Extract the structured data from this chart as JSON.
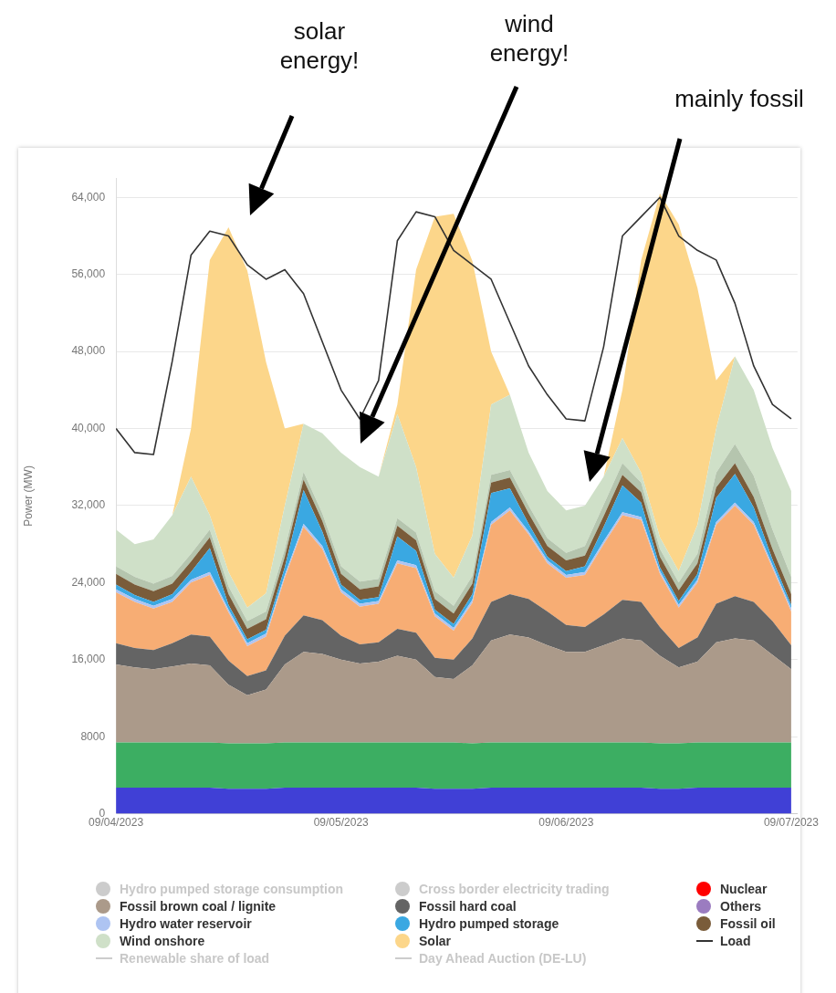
{
  "chart_data": {
    "type": "area",
    "stacked": true,
    "ylabel": "Power (MW)",
    "legend": "bottom",
    "grid": "y",
    "annotations": [
      "solar energy!",
      "wind energy!",
      "mainly fossil"
    ],
    "x": [
      "2023-09-04T00:00",
      "2023-09-04T02:00",
      "2023-09-04T04:00",
      "2023-09-04T06:00",
      "2023-09-04T08:00",
      "2023-09-04T10:00",
      "2023-09-04T12:00",
      "2023-09-04T14:00",
      "2023-09-04T16:00",
      "2023-09-04T18:00",
      "2023-09-04T20:00",
      "2023-09-04T22:00",
      "2023-09-05T00:00",
      "2023-09-05T02:00",
      "2023-09-05T04:00",
      "2023-09-05T06:00",
      "2023-09-05T08:00",
      "2023-09-05T10:00",
      "2023-09-05T12:00",
      "2023-09-05T14:00",
      "2023-09-05T16:00",
      "2023-09-05T18:00",
      "2023-09-05T20:00",
      "2023-09-05T22:00",
      "2023-09-06T00:00",
      "2023-09-06T02:00",
      "2023-09-06T04:00",
      "2023-09-06T06:00",
      "2023-09-06T08:00",
      "2023-09-06T10:00",
      "2023-09-06T12:00",
      "2023-09-06T14:00",
      "2023-09-06T16:00",
      "2023-09-06T18:00",
      "2023-09-06T20:00",
      "2023-09-06T22:00",
      "2023-09-07T00:00"
    ],
    "xlim": [
      "2023-09-04T00:00",
      "2023-09-07T00:40"
    ],
    "xticks": [
      {
        "value": "2023-09-04T00:00",
        "label": "09/04/2023"
      },
      {
        "value": "2023-09-05T00:00",
        "label": "09/05/2023"
      },
      {
        "value": "2023-09-06T00:00",
        "label": "09/06/2023"
      },
      {
        "value": "2023-09-07T00:00",
        "label": "09/07/2023"
      }
    ],
    "ylim": [
      0,
      66000
    ],
    "yticks": [
      0,
      8000,
      {
        "value": 16000,
        "label": "16,000"
      },
      {
        "value": 24000,
        "label": "24,000"
      },
      {
        "value": 32000,
        "label": "32,000"
      },
      {
        "value": 40000,
        "label": "40,000"
      },
      {
        "value": 48000,
        "label": "48,000"
      },
      {
        "value": 56000,
        "label": "56,000"
      },
      {
        "value": 64000,
        "label": "64,000"
      }
    ],
    "series": [
      {
        "name": "Hydro pumped storage consumption",
        "color": "#cccccc",
        "values": [
          null,
          null,
          null,
          null,
          null,
          null,
          null,
          null,
          null,
          null,
          null,
          null,
          null,
          null,
          null,
          null,
          null,
          null,
          null,
          null,
          null,
          null,
          null,
          null,
          null,
          null,
          null,
          null,
          null,
          null,
          null,
          null,
          null,
          null,
          null,
          null,
          null
        ]
      },
      {
        "name": "Cross border electricity trading",
        "color": "#cccccc",
        "values": [
          null,
          null,
          null,
          null,
          null,
          null,
          null,
          null,
          null,
          null,
          null,
          null,
          null,
          null,
          null,
          null,
          null,
          null,
          null,
          null,
          null,
          null,
          null,
          null,
          null,
          null,
          null,
          null,
          null,
          null,
          null,
          null,
          null,
          null,
          null,
          null,
          null
        ]
      },
      {
        "name": "Nuclear",
        "color": "#ff0000",
        "values": [
          null,
          null,
          null,
          null,
          null,
          null,
          null,
          null,
          null,
          null,
          null,
          null,
          null,
          null,
          null,
          null,
          null,
          null,
          null,
          null,
          null,
          null,
          null,
          null,
          null,
          null,
          null,
          null,
          null,
          null,
          null,
          null,
          null,
          null,
          null,
          null,
          null
        ]
      },
      {
        "color": "#4040d6",
        "values": [
          2700,
          2700,
          2700,
          2700,
          2700,
          2700,
          2600,
          2600,
          2600,
          2700,
          2700,
          2700,
          2700,
          2700,
          2700,
          2700,
          2700,
          2600,
          2600,
          2600,
          2700,
          2700,
          2700,
          2700,
          2700,
          2700,
          2700,
          2700,
          2700,
          2600,
          2600,
          2700,
          2700,
          2700,
          2700,
          2700,
          2700
        ]
      },
      {
        "color": "#3cae62",
        "values": [
          4700,
          4700,
          4700,
          4700,
          4700,
          4700,
          4700,
          4700,
          4700,
          4700,
          4700,
          4700,
          4700,
          4700,
          4700,
          4700,
          4700,
          4800,
          4800,
          4700,
          4700,
          4700,
          4700,
          4700,
          4700,
          4700,
          4700,
          4700,
          4700,
          4700,
          4700,
          4700,
          4700,
          4700,
          4700,
          4700,
          4700
        ]
      },
      {
        "name": "Fossil brown coal / lignite",
        "color": "#ab9a8a",
        "values": [
          8100,
          7800,
          7600,
          7900,
          8200,
          8000,
          6100,
          5000,
          5600,
          8100,
          9400,
          9200,
          8600,
          8200,
          8400,
          9000,
          8600,
          6800,
          6600,
          8100,
          10600,
          11200,
          10900,
          10100,
          9400,
          9400,
          10100,
          10800,
          10600,
          9100,
          7900,
          8400,
          10400,
          10800,
          10600,
          9100,
          7600
        ]
      },
      {
        "name": "Fossil hard coal",
        "color": "#646464",
        "values": [
          2200,
          2000,
          2000,
          2400,
          3000,
          3000,
          2500,
          2000,
          2000,
          3000,
          3800,
          3500,
          2500,
          2000,
          2000,
          2800,
          2800,
          2000,
          2000,
          2800,
          4000,
          4200,
          4000,
          3500,
          2800,
          2600,
          3200,
          4000,
          4000,
          3000,
          2000,
          2500,
          4000,
          4400,
          4000,
          3500,
          2500
        ]
      },
      {
        "color": "#f7ad74",
        "values": [
          5300,
          4800,
          4300,
          4300,
          5400,
          6400,
          5000,
          3100,
          3500,
          6000,
          9200,
          7400,
          4500,
          3900,
          4000,
          6800,
          6700,
          4300,
          3000,
          3700,
          8000,
          8700,
          6700,
          5000,
          4900,
          5400,
          7300,
          8800,
          8500,
          5500,
          4200,
          5700,
          8200,
          9400,
          8000,
          5500,
          3500
        ]
      },
      {
        "name": "Others",
        "color": "#9b7cc0",
        "values": [
          null,
          null,
          null,
          null,
          null,
          null,
          null,
          null,
          null,
          null,
          null,
          null,
          null,
          null,
          null,
          null,
          null,
          null,
          null,
          null,
          null,
          null,
          null,
          null,
          null,
          null,
          null,
          null,
          null,
          null,
          null,
          null,
          null,
          null,
          null,
          null,
          null
        ]
      },
      {
        "name": "Hydro water reservoir",
        "color": "#aec4f2",
        "values": [
          300,
          300,
          300,
          300,
          300,
          300,
          300,
          300,
          300,
          300,
          300,
          300,
          300,
          300,
          300,
          300,
          300,
          300,
          300,
          300,
          300,
          300,
          300,
          300,
          300,
          300,
          300,
          300,
          300,
          300,
          300,
          300,
          300,
          300,
          300,
          300,
          300
        ]
      },
      {
        "name": "Hydro pumped storage",
        "color": "#3aa8e2",
        "values": [
          500,
          400,
          400,
          500,
          800,
          2500,
          500,
          400,
          400,
          800,
          3500,
          1500,
          500,
          400,
          400,
          2500,
          1500,
          400,
          400,
          600,
          3000,
          2000,
          800,
          400,
          400,
          600,
          1500,
          2800,
          1500,
          400,
          400,
          600,
          2500,
          3000,
          1500,
          600,
          400
        ]
      },
      {
        "name": "Fossil oil",
        "color": "#7a5c3a",
        "values": [
          1100,
          1100,
          1100,
          1100,
          1100,
          1100,
          1100,
          1100,
          1100,
          1100,
          1100,
          1100,
          1100,
          1100,
          1100,
          1100,
          1100,
          1100,
          1100,
          1100,
          1100,
          1100,
          1100,
          1100,
          1100,
          1100,
          1100,
          1100,
          1100,
          1100,
          1100,
          1100,
          1100,
          1100,
          1100,
          1100,
          1100
        ]
      },
      {
        "color": "#b5c5ae",
        "values": [
          800,
          800,
          800,
          800,
          800,
          800,
          800,
          800,
          800,
          800,
          800,
          800,
          800,
          800,
          800,
          800,
          800,
          800,
          800,
          800,
          800,
          800,
          800,
          800,
          800,
          1000,
          1200,
          1200,
          1000,
          800,
          800,
          1000,
          1500,
          2000,
          2200,
          2000,
          1800
        ]
      },
      {
        "name": "Wind onshore",
        "color": "#cfe0c8",
        "values": [
          3800,
          3400,
          4600,
          6300,
          8000,
          1500,
          1500,
          1400,
          1900,
          4500,
          5000,
          8300,
          11800,
          11900,
          10600,
          10800,
          6800,
          3900,
          2900,
          4200,
          7300,
          7800,
          5500,
          4900,
          4400,
          4200,
          2900,
          2600,
          1000,
          1200,
          1200,
          3000,
          4600,
          9100,
          8900,
          8500,
          8900
        ]
      },
      {
        "name": "Solar",
        "color": "#fcd68a",
        "values": [
          0,
          0,
          0,
          0,
          5000,
          26500,
          35800,
          35000,
          24000,
          8000,
          0,
          0,
          0,
          0,
          0,
          1000,
          20500,
          35000,
          37800,
          28500,
          5500,
          0,
          0,
          0,
          0,
          0,
          0,
          5000,
          22100,
          35700,
          36000,
          24600,
          5000,
          0,
          0,
          0,
          0
        ]
      },
      {
        "name": "Load",
        "type": "line",
        "color": "#333333",
        "values": [
          40000,
          37500,
          37300,
          47000,
          58000,
          60500,
          60000,
          57000,
          55500,
          56500,
          54000,
          49000,
          44000,
          41000,
          45000,
          59500,
          62500,
          62000,
          58500,
          57000,
          55500,
          51000,
          46500,
          43500,
          41000,
          40800,
          48500,
          60000,
          62000,
          64000,
          60000,
          58500,
          57500,
          53000,
          46500,
          42500,
          41000
        ]
      },
      {
        "name": "Renewable share of load",
        "type": "line",
        "color": "#cccccc",
        "values": [
          null,
          null,
          null,
          null,
          null,
          null,
          null,
          null,
          null,
          null,
          null,
          null,
          null,
          null,
          null,
          null,
          null,
          null,
          null,
          null,
          null,
          null,
          null,
          null,
          null,
          null,
          null,
          null,
          null,
          null,
          null,
          null,
          null,
          null,
          null,
          null,
          null
        ]
      },
      {
        "name": "Day Ahead Auction (DE-LU)",
        "type": "line",
        "color": "#cccccc",
        "values": [
          null,
          null,
          null,
          null,
          null,
          null,
          null,
          null,
          null,
          null,
          null,
          null,
          null,
          null,
          null,
          null,
          null,
          null,
          null,
          null,
          null,
          null,
          null,
          null,
          null,
          null,
          null,
          null,
          null,
          null,
          null,
          null,
          null,
          null,
          null,
          null,
          null
        ]
      }
    ]
  }
}
